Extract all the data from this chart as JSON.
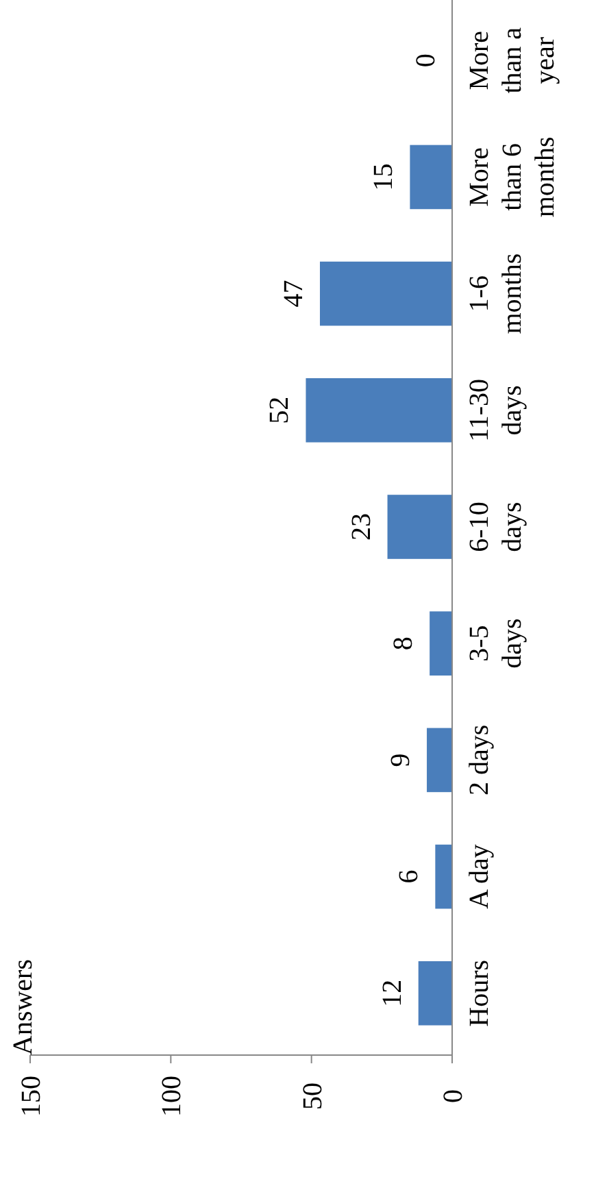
{
  "chart_data": {
    "type": "bar",
    "orientation": "horizontal",
    "ylabel": "Answers",
    "categories": [
      "More than a year",
      "More than 6 months",
      "1-6 months",
      "11-30 days",
      "6-10 days",
      "3-5 days",
      "2 days",
      "A day",
      "Hours"
    ],
    "values": [
      0,
      15,
      47,
      52,
      23,
      8,
      9,
      6,
      12
    ],
    "color": "#4a7ebb",
    "xlim": [
      150,
      0
    ],
    "xticks": [
      150,
      100,
      50,
      0
    ],
    "data_labels": true
  }
}
